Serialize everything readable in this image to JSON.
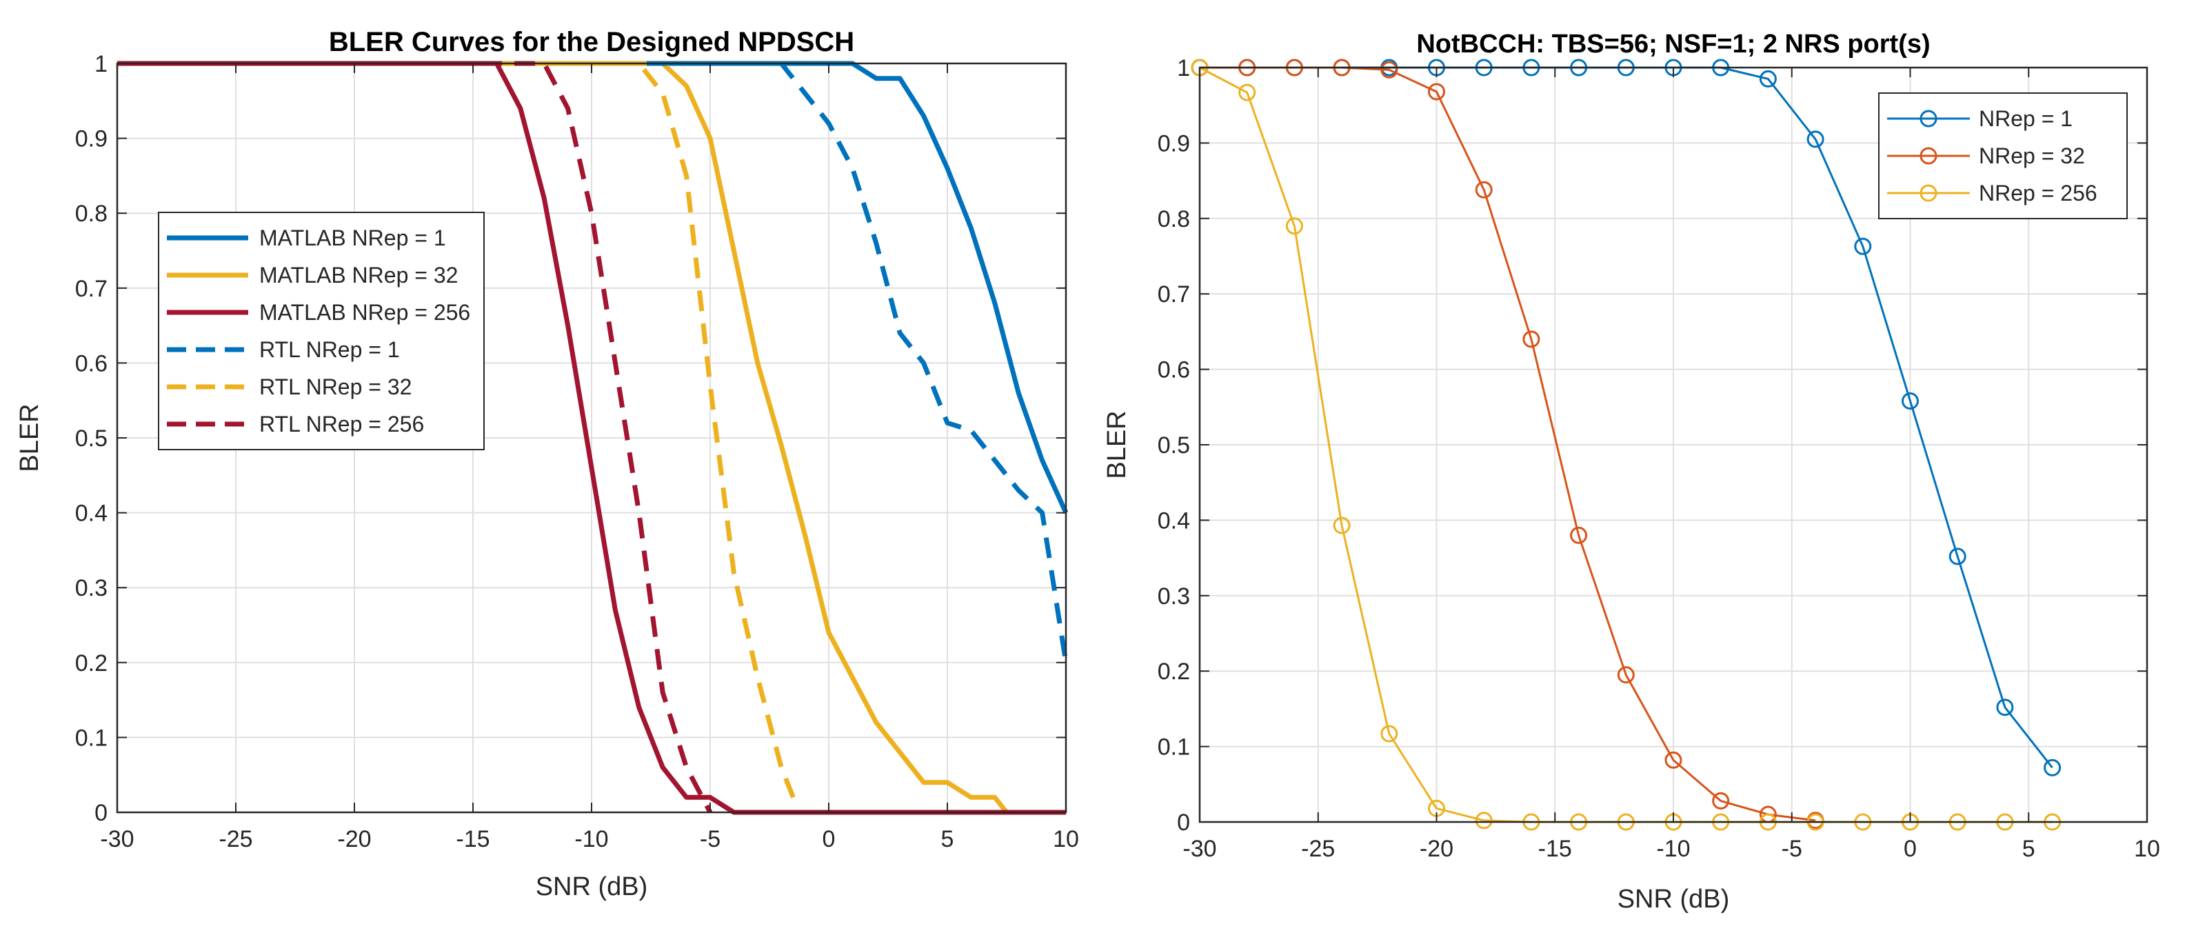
{
  "chart_data": [
    {
      "type": "line",
      "title": "BLER Curves for the Designed NPDSCH",
      "xlabel": "SNR (dB)",
      "ylabel": "BLER",
      "xlim": [
        -30,
        10
      ],
      "ylim": [
        0,
        1
      ],
      "xticks": [
        "-30",
        "-25",
        "-20",
        "-15",
        "-10",
        "-5",
        "0",
        "5",
        "10"
      ],
      "yticks": [
        "0",
        "0.1",
        "0.2",
        "0.3",
        "0.4",
        "0.5",
        "0.6",
        "0.7",
        "0.8",
        "0.9",
        "1"
      ],
      "grid": true,
      "legend_position": "middle-left",
      "series": [
        {
          "name": "MATLAB NRep = 1",
          "color": "#0072BD",
          "dash": "solid",
          "markers": false,
          "x": [
            -30,
            0,
            1,
            2,
            3,
            4,
            5,
            6,
            7,
            8,
            9,
            10
          ],
          "y": [
            1,
            1,
            1,
            0.98,
            0.98,
            0.93,
            0.86,
            0.78,
            0.68,
            0.56,
            0.47,
            0.4
          ]
        },
        {
          "name": "MATLAB NRep = 32",
          "color": "#EDB120",
          "dash": "solid",
          "markers": false,
          "x": [
            -30,
            -7,
            -6,
            -5,
            -4,
            -3,
            -2,
            -1,
            0,
            1,
            2,
            3,
            4,
            5,
            6,
            7,
            7.5,
            10
          ],
          "y": [
            1,
            1,
            0.97,
            0.9,
            0.75,
            0.6,
            0.49,
            0.37,
            0.24,
            0.18,
            0.12,
            0.08,
            0.04,
            0.04,
            0.02,
            0.02,
            0,
            0
          ]
        },
        {
          "name": "MATLAB NRep = 256",
          "color": "#A2142F",
          "dash": "solid",
          "markers": false,
          "x": [
            -30,
            -14,
            -13,
            -12,
            -11,
            -10,
            -9,
            -8,
            -7,
            -6,
            -5,
            -4,
            10
          ],
          "y": [
            1,
            1,
            0.94,
            0.82,
            0.65,
            0.46,
            0.27,
            0.14,
            0.06,
            0.02,
            0.02,
            0,
            0
          ]
        },
        {
          "name": "RTL NRep = 1",
          "color": "#0072BD",
          "dash": "dashed",
          "markers": false,
          "x": [
            -30,
            -2,
            0,
            1,
            2,
            3,
            4,
            5,
            6,
            7,
            8,
            9,
            10
          ],
          "y": [
            1,
            1,
            0.92,
            0.86,
            0.76,
            0.64,
            0.6,
            0.52,
            0.51,
            0.47,
            0.43,
            0.4,
            0.2
          ]
        },
        {
          "name": "RTL NRep = 32",
          "color": "#EDB120",
          "dash": "dashed",
          "markers": false,
          "x": [
            -30,
            -8,
            -7,
            -6,
            -5,
            -4,
            -3,
            -2,
            -1.5
          ],
          "y": [
            1,
            1,
            0.96,
            0.85,
            0.57,
            0.32,
            0.18,
            0.06,
            0.02
          ]
        },
        {
          "name": "RTL NRep = 256",
          "color": "#A2142F",
          "dash": "dashed",
          "markers": false,
          "x": [
            -30,
            -12,
            -11,
            -10,
            -9,
            -8,
            -7,
            -6,
            -5
          ],
          "y": [
            1,
            1,
            0.94,
            0.8,
            0.6,
            0.4,
            0.16,
            0.06,
            0
          ]
        }
      ]
    },
    {
      "type": "line",
      "title": "NotBCCH: TBS=56; NSF=1; 2 NRS port(s)",
      "xlabel": "SNR (dB)",
      "ylabel": "BLER",
      "xlim": [
        -30,
        10
      ],
      "ylim": [
        0,
        1
      ],
      "xticks": [
        "-30",
        "-25",
        "-20",
        "-15",
        "-10",
        "-5",
        "0",
        "5",
        "10"
      ],
      "yticks": [
        "0",
        "0.1",
        "0.2",
        "0.3",
        "0.4",
        "0.5",
        "0.6",
        "0.7",
        "0.8",
        "0.9",
        "1"
      ],
      "grid": true,
      "legend_position": "top-right",
      "series": [
        {
          "name": "NRep = 1",
          "color": "#0072BD",
          "dash": "solid",
          "markers": true,
          "x": [
            -30,
            -28,
            -26,
            -24,
            -22,
            -20,
            -18,
            -16,
            -14,
            -12,
            -10,
            -8,
            -6,
            -4,
            -2,
            0,
            2,
            4,
            6
          ],
          "y": [
            1,
            1,
            1,
            1,
            1,
            1,
            1,
            1,
            1,
            1,
            1,
            1,
            0.985,
            0.905,
            0.763,
            0.558,
            0.352,
            0.152,
            0.072
          ]
        },
        {
          "name": "NRep = 32",
          "color": "#D95319",
          "dash": "solid",
          "markers": true,
          "x": [
            -30,
            -28,
            -26,
            -24,
            -22,
            -20,
            -18,
            -16,
            -14,
            -12,
            -10,
            -8,
            -6,
            -4
          ],
          "y": [
            1,
            1,
            1,
            1,
            0.997,
            0.968,
            0.838,
            0.64,
            0.38,
            0.195,
            0.082,
            0.028,
            0.01,
            0.002
          ]
        },
        {
          "name": "NRep = 256",
          "color": "#EDB120",
          "dash": "solid",
          "markers": true,
          "x": [
            -30,
            -28,
            -26,
            -24,
            -22,
            -20,
            -18,
            -16,
            -14,
            -12,
            -10,
            -8,
            -6,
            -4,
            -2,
            0,
            2,
            4,
            6
          ],
          "y": [
            1,
            0.967,
            0.79,
            0.393,
            0.117,
            0.018,
            0.002,
            0,
            0,
            0,
            0,
            0,
            0,
            0,
            0,
            0,
            0,
            0,
            0
          ]
        }
      ]
    }
  ]
}
